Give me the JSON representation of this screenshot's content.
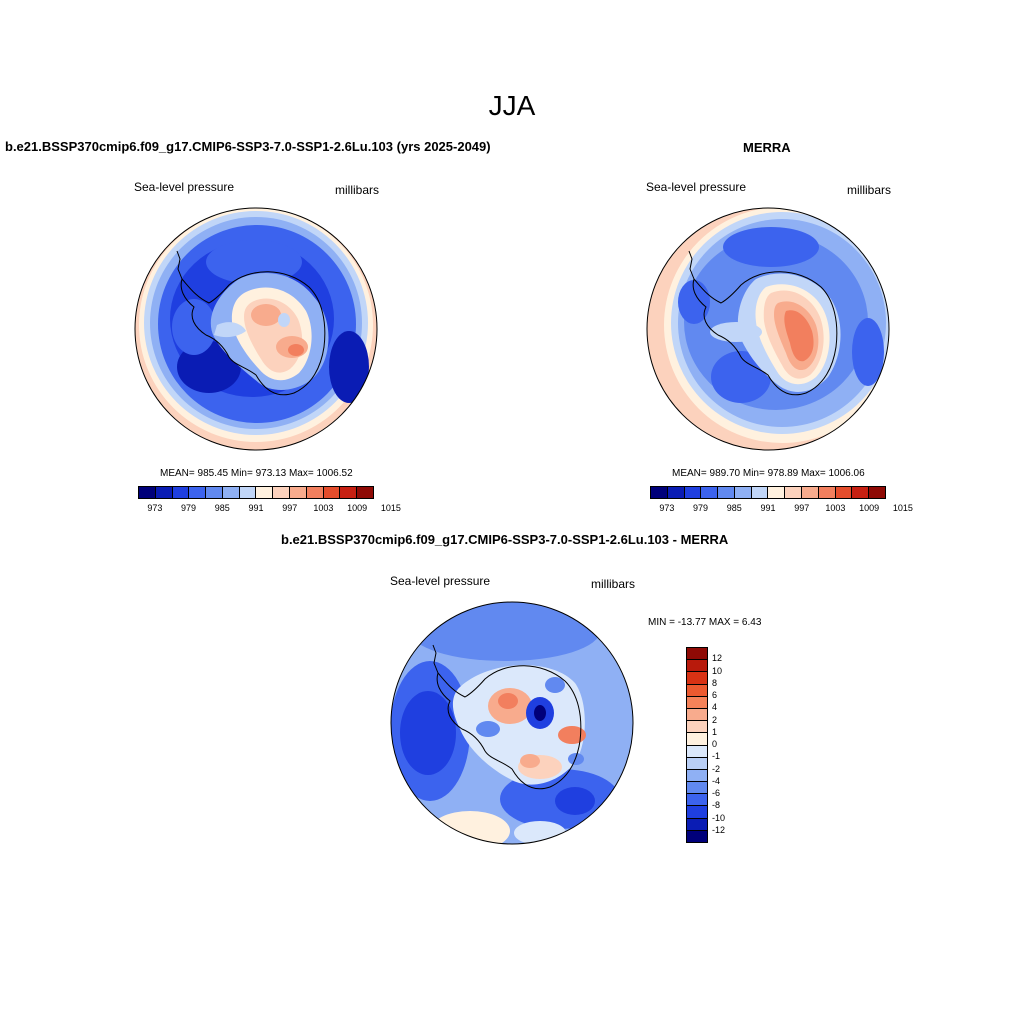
{
  "season": "JJA",
  "panels": {
    "model": {
      "title": "b.e21.BSSP370cmip6.f09_g17.CMIP6-SSP3-7.0-SSP1-2.6Lu.103 (yrs 2025-2049)",
      "variable": "Sea-level pressure",
      "units": "millibars",
      "stats": "MEAN= 985.45  Min= 973.13  Max= 1006.52"
    },
    "obs": {
      "title": "MERRA",
      "variable": "Sea-level pressure",
      "units": "millibars",
      "stats": "MEAN= 989.70  Min= 978.89  Max= 1006.06"
    },
    "diff": {
      "title": "b.e21.BSSP370cmip6.f09_g17.CMIP6-SSP3-7.0-SSP1-2.6Lu.103 - MERRA",
      "variable": "Sea-level pressure",
      "units": "millibars",
      "stats": "MIN = -13.77 MAX =   6.43"
    }
  },
  "colorbar_abs": {
    "colors": [
      "#00007a",
      "#0a1cb4",
      "#1f3fe0",
      "#3c63ee",
      "#6189f0",
      "#8fb0f4",
      "#c1d6f8",
      "#fff1df",
      "#fcd2bd",
      "#f8ab8d",
      "#f27f5e",
      "#e44d2c",
      "#c72012",
      "#8f0a05"
    ],
    "ticks": [
      "973",
      "979",
      "985",
      "991",
      "997",
      "1003",
      "1009",
      "1015"
    ]
  },
  "colorbar_diff": {
    "colors": [
      "#8f0a05",
      "#b81a0c",
      "#d83214",
      "#ec5a30",
      "#f58259",
      "#f8ab8d",
      "#fcd2bd",
      "#fff1df",
      "#dbe8fb",
      "#b9cff6",
      "#8fb0f4",
      "#6189f0",
      "#3c63ee",
      "#1f3fe0",
      "#0a1cb4",
      "#00007a"
    ],
    "ticks": [
      "12",
      "10",
      "8",
      "6",
      "4",
      "2",
      "1",
      "0",
      "-1",
      "-2",
      "-4",
      "-6",
      "-8",
      "-10",
      "-12"
    ]
  }
}
